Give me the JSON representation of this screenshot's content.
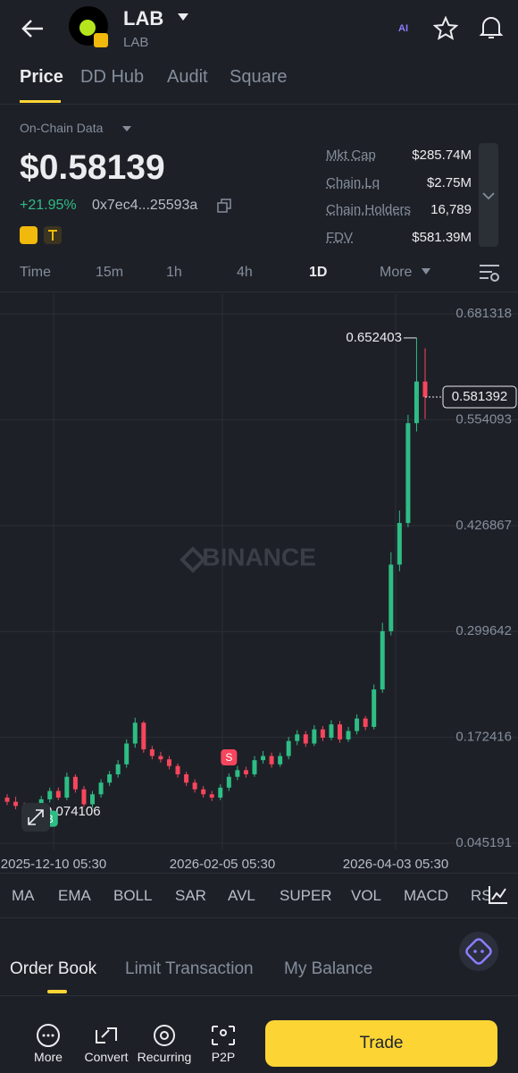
{
  "header": {
    "title": "LAB",
    "subtitle": "LAB",
    "ai": "AI"
  },
  "tabs": [
    "Price",
    "DD Hub",
    "Audit",
    "Square"
  ],
  "source": "On-Chain Data",
  "price": "$0.58139",
  "change": "+21.95%",
  "contract": "0x7ec4...25593a",
  "stats": [
    {
      "label": "Mkt Cap",
      "value": "$285.74M"
    },
    {
      "label": "Chain.Lq",
      "value": "$2.75M"
    },
    {
      "label": "Chain.Holders",
      "value": "16,789"
    },
    {
      "label": "FDV",
      "value": "$581.39M"
    }
  ],
  "timeframes": [
    "Time",
    "15m",
    "1h",
    "4h",
    "1D",
    "More"
  ],
  "chart_data": {
    "type": "candlestick",
    "watermark": "BINANCE",
    "x_labels": [
      "2025-12-10 05:30",
      "2026-02-05 05:30",
      "2026-04-03 05:30"
    ],
    "ylim": [
      0.0377,
      0.7039
    ],
    "yticks": [
      0.681318,
      0.554093,
      0.426867,
      0.299642,
      0.172416,
      0.045191
    ],
    "up_color": "#2ebd85",
    "down_color": "#f6465d",
    "signals": [
      "B",
      "S"
    ],
    "open": [
      0.1,
      0.095,
      0.09,
      0.085,
      0.08,
      0.098,
      0.108,
      0.1,
      0.125,
      0.11,
      0.092,
      0.104,
      0.118,
      0.128,
      0.14,
      0.165,
      0.19,
      0.158,
      0.15,
      0.146,
      0.138,
      0.128,
      0.118,
      0.11,
      0.104,
      0.1,
      0.112,
      0.125,
      0.133,
      0.128,
      0.145,
      0.15,
      0.14,
      0.15,
      0.168,
      0.176,
      0.165,
      0.182,
      0.172,
      0.188,
      0.17,
      0.18,
      0.195,
      0.185,
      0.23,
      0.3,
      0.38,
      0.43,
      0.55,
      0.6
    ],
    "high": [
      0.104,
      0.101,
      0.094,
      0.09,
      0.102,
      0.112,
      0.112,
      0.13,
      0.128,
      0.114,
      0.108,
      0.122,
      0.132,
      0.145,
      0.17,
      0.196,
      0.192,
      0.162,
      0.155,
      0.15,
      0.141,
      0.131,
      0.122,
      0.114,
      0.108,
      0.116,
      0.129,
      0.138,
      0.137,
      0.15,
      0.156,
      0.154,
      0.154,
      0.173,
      0.181,
      0.18,
      0.187,
      0.186,
      0.193,
      0.192,
      0.185,
      0.2,
      0.198,
      0.236,
      0.31,
      0.395,
      0.445,
      0.56,
      0.652403,
      0.64
    ],
    "low": [
      0.091,
      0.086,
      0.081,
      0.074106,
      0.077,
      0.094,
      0.097,
      0.097,
      0.106,
      0.089,
      0.088,
      0.1,
      0.114,
      0.124,
      0.136,
      0.16,
      0.154,
      0.146,
      0.142,
      0.134,
      0.124,
      0.114,
      0.106,
      0.1,
      0.096,
      0.097,
      0.108,
      0.121,
      0.124,
      0.125,
      0.141,
      0.136,
      0.137,
      0.146,
      0.163,
      0.161,
      0.162,
      0.168,
      0.169,
      0.166,
      0.167,
      0.176,
      0.181,
      0.182,
      0.226,
      0.295,
      0.372,
      0.425,
      0.54,
      0.555
    ],
    "close": [
      0.095,
      0.09,
      0.085,
      0.08,
      0.098,
      0.108,
      0.1,
      0.125,
      0.11,
      0.092,
      0.104,
      0.118,
      0.128,
      0.14,
      0.165,
      0.19,
      0.158,
      0.15,
      0.146,
      0.138,
      0.128,
      0.118,
      0.11,
      0.104,
      0.1,
      0.112,
      0.125,
      0.133,
      0.128,
      0.145,
      0.15,
      0.14,
      0.15,
      0.168,
      0.176,
      0.165,
      0.182,
      0.172,
      0.188,
      0.17,
      0.18,
      0.195,
      0.185,
      0.23,
      0.3,
      0.38,
      0.43,
      0.55,
      0.6,
      0.581392
    ]
  },
  "indicators": [
    "MA",
    "EMA",
    "BOLL",
    "SAR",
    "AVL",
    "SUPER",
    "VOL",
    "MACD",
    "RSI"
  ],
  "order_tabs": [
    "Order Book",
    "Limit Transaction",
    "My Balance"
  ],
  "nav": [
    "More",
    "Convert",
    "Recurring",
    "P2P"
  ],
  "trade": "Trade"
}
